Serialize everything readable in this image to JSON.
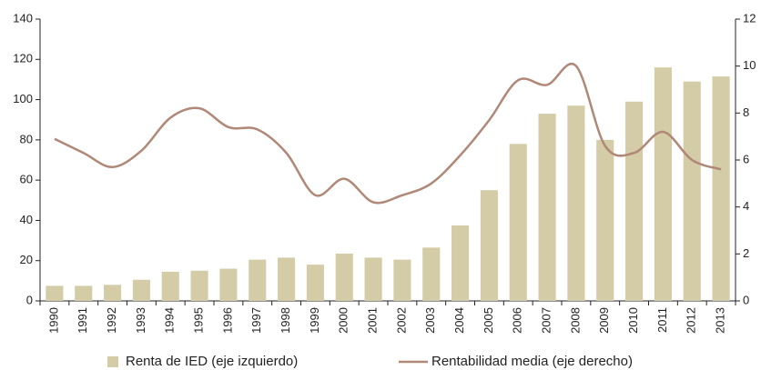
{
  "chart_data": {
    "type": "bar_line",
    "categories": [
      "1990",
      "1991",
      "1992",
      "1993",
      "1994",
      "1995",
      "1996",
      "1997",
      "1998",
      "1999",
      "2000",
      "2001",
      "2002",
      "2003",
      "2004",
      "2005",
      "2006",
      "2007",
      "2008",
      "2009",
      "2010",
      "2011",
      "2012",
      "2013"
    ],
    "series": [
      {
        "name": "Renta de IED (eje izquierdo)",
        "color": "#d4cca6",
        "type": "bar",
        "axis": "y",
        "values": [
          7.5,
          7.5,
          8,
          10.5,
          14.5,
          15,
          16,
          20.5,
          21.5,
          18,
          23.5,
          21.5,
          20.5,
          26.5,
          37.5,
          55,
          78,
          93,
          97,
          80,
          99,
          116,
          109,
          111.5
        ]
      },
      {
        "name": "Rentabilidad media (eje derecho)",
        "color": "#b08878",
        "type": "line",
        "axis": "y2",
        "values": [
          6.9,
          6.3,
          5.7,
          6.4,
          7.8,
          8.2,
          7.4,
          7.3,
          6.3,
          4.5,
          5.2,
          4.2,
          4.5,
          5.0,
          6.2,
          7.7,
          9.4,
          9.2,
          10.0,
          6.6,
          6.3,
          7.2,
          6.0,
          5.6
        ]
      }
    ],
    "ylim": [
      0,
      140
    ],
    "yticks": [
      0,
      20,
      40,
      60,
      80,
      100,
      120,
      140
    ],
    "y2lim": [
      0,
      12
    ],
    "y2ticks": [
      0,
      2,
      4,
      6,
      8,
      10,
      12
    ],
    "grid": false,
    "legend": "bottom"
  }
}
